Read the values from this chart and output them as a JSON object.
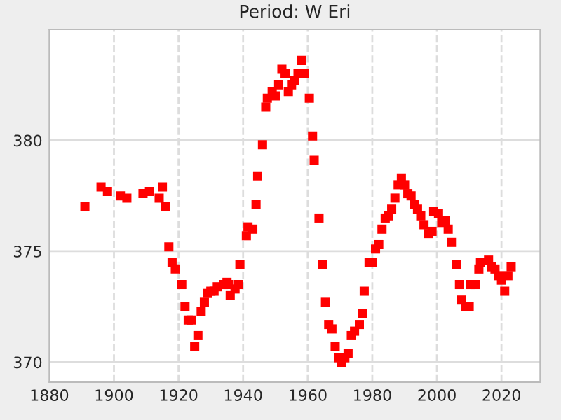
{
  "chart_data": {
    "type": "scatter",
    "title": "Period: W Eri",
    "marker": "square",
    "grid": true,
    "x": [
      1891,
      1896,
      1898,
      1902,
      1904,
      1909,
      1911,
      1914,
      1915,
      1916,
      1917,
      1918,
      1919,
      1921,
      1922,
      1923,
      1924,
      1925,
      1926,
      1927,
      1928,
      1929,
      1930,
      1931,
      1932,
      1934,
      1935,
      1935.5,
      1936,
      1937.5,
      1938.5,
      1939,
      1941,
      1941.5,
      1943,
      1944,
      1944.5,
      1946,
      1947,
      1947.5,
      1949,
      1950,
      1951,
      1952,
      1953,
      1954,
      1955,
      1956,
      1957,
      1958,
      1959,
      1960.5,
      1961.5,
      1962,
      1963.5,
      1964.5,
      1965.5,
      1966.5,
      1967.5,
      1968.5,
      1969.5,
      1970.5,
      1971.5,
      1972.5,
      1973.5,
      1974.5,
      1976,
      1977,
      1977.5,
      1979,
      1980,
      1981,
      1982,
      1983,
      1984,
      1985,
      1986,
      1987,
      1988,
      1989,
      1990,
      1991,
      1992,
      1993,
      1994,
      1995,
      1996,
      1997.5,
      1998.5,
      1999,
      2000.5,
      2001.5,
      2002.5,
      2003.5,
      2004.5,
      2006,
      2007,
      2007.5,
      2009,
      2010,
      2010.5,
      2012,
      2013,
      2013.5,
      2016,
      2017,
      2018,
      2019,
      2020,
      2021,
      2022,
      2023
    ],
    "series": [
      {
        "color": "#ff0000",
        "values": [
          377.0,
          377.9,
          377.7,
          377.5,
          377.4,
          377.6,
          377.7,
          377.4,
          377.9,
          377.0,
          375.2,
          374.5,
          374.2,
          373.5,
          372.5,
          371.9,
          371.9,
          370.7,
          371.2,
          372.3,
          372.7,
          373.1,
          373.2,
          373.2,
          373.4,
          373.5,
          373.6,
          373.5,
          373.0,
          373.3,
          373.5,
          374.4,
          375.7,
          376.1,
          376.0,
          377.1,
          378.4,
          379.8,
          381.5,
          381.9,
          382.2,
          382.0,
          382.5,
          383.2,
          383.0,
          382.2,
          382.5,
          382.7,
          383.0,
          383.6,
          383.0,
          381.9,
          380.2,
          379.1,
          376.5,
          374.4,
          372.7,
          371.7,
          371.5,
          370.7,
          370.2,
          370.0,
          370.2,
          370.4,
          371.2,
          371.4,
          371.7,
          372.2,
          373.2,
          374.5,
          374.5,
          375.1,
          375.3,
          376.0,
          376.5,
          376.6,
          376.9,
          377.4,
          378.0,
          378.3,
          378.0,
          377.6,
          377.5,
          377.1,
          376.9,
          376.6,
          376.2,
          375.8,
          375.9,
          376.8,
          376.7,
          376.3,
          376.4,
          376.0,
          375.4,
          374.4,
          373.5,
          372.8,
          372.5,
          372.5,
          373.5,
          373.5,
          374.2,
          374.5,
          374.6,
          374.3,
          374.2,
          373.9,
          373.7,
          373.2,
          373.9,
          374.3
        ]
      }
    ],
    "xlim": [
      1880,
      2032
    ],
    "xticks": [
      1880,
      1900,
      1920,
      1940,
      1960,
      1980,
      2000,
      2020
    ],
    "ylim": [
      369.1,
      385
    ],
    "yticks": [
      370,
      375,
      380
    ]
  }
}
